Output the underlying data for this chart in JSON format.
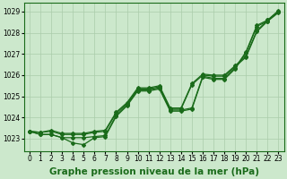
{
  "title": "Graphe pression niveau de la mer (hPa)",
  "bg_color": "#cce8cc",
  "line_color": "#1a6b1a",
  "grid_color": "#aaccaa",
  "xlim": [
    -0.5,
    23.5
  ],
  "ylim": [
    1022.4,
    1029.4
  ],
  "yticks": [
    1023,
    1024,
    1025,
    1026,
    1027,
    1028,
    1029
  ],
  "xticks": [
    0,
    1,
    2,
    3,
    4,
    5,
    6,
    7,
    8,
    9,
    10,
    11,
    12,
    13,
    14,
    15,
    16,
    17,
    18,
    19,
    20,
    21,
    22,
    23
  ],
  "s1": [
    1023.35,
    1023.2,
    1023.2,
    1023.05,
    1022.8,
    1022.72,
    1023.05,
    1023.1,
    1024.05,
    1024.55,
    1025.25,
    1025.25,
    1025.35,
    1024.3,
    1024.3,
    1024.4,
    1025.9,
    1025.8,
    1025.8,
    1026.3,
    1027.05,
    1028.3,
    1028.55,
    1029.0
  ],
  "s2": [
    1023.35,
    1023.2,
    1023.2,
    1023.05,
    1023.05,
    1023.05,
    1023.1,
    1023.15,
    1024.1,
    1024.6,
    1025.3,
    1025.3,
    1025.4,
    1024.35,
    1024.35,
    1024.45,
    1025.95,
    1025.85,
    1025.85,
    1026.35,
    1027.1,
    1028.35,
    1028.6,
    1029.05
  ],
  "s3": [
    1023.35,
    1023.3,
    1023.35,
    1023.2,
    1023.2,
    1023.2,
    1023.3,
    1023.35,
    1024.2,
    1024.65,
    1025.35,
    1025.35,
    1025.45,
    1024.4,
    1024.4,
    1025.55,
    1026.0,
    1025.95,
    1025.95,
    1026.4,
    1026.85,
    1028.05,
    1028.55,
    1028.95
  ],
  "s4": [
    1023.35,
    1023.3,
    1023.4,
    1023.25,
    1023.25,
    1023.25,
    1023.35,
    1023.4,
    1024.25,
    1024.7,
    1025.4,
    1025.4,
    1025.5,
    1024.45,
    1024.45,
    1025.6,
    1026.05,
    1026.0,
    1026.0,
    1026.45,
    1026.9,
    1028.1,
    1028.6,
    1029.0
  ],
  "marker": "D",
  "markersize": 2.0,
  "linewidth": 0.9,
  "title_fontsize": 7.5,
  "tick_fontsize": 5.5
}
